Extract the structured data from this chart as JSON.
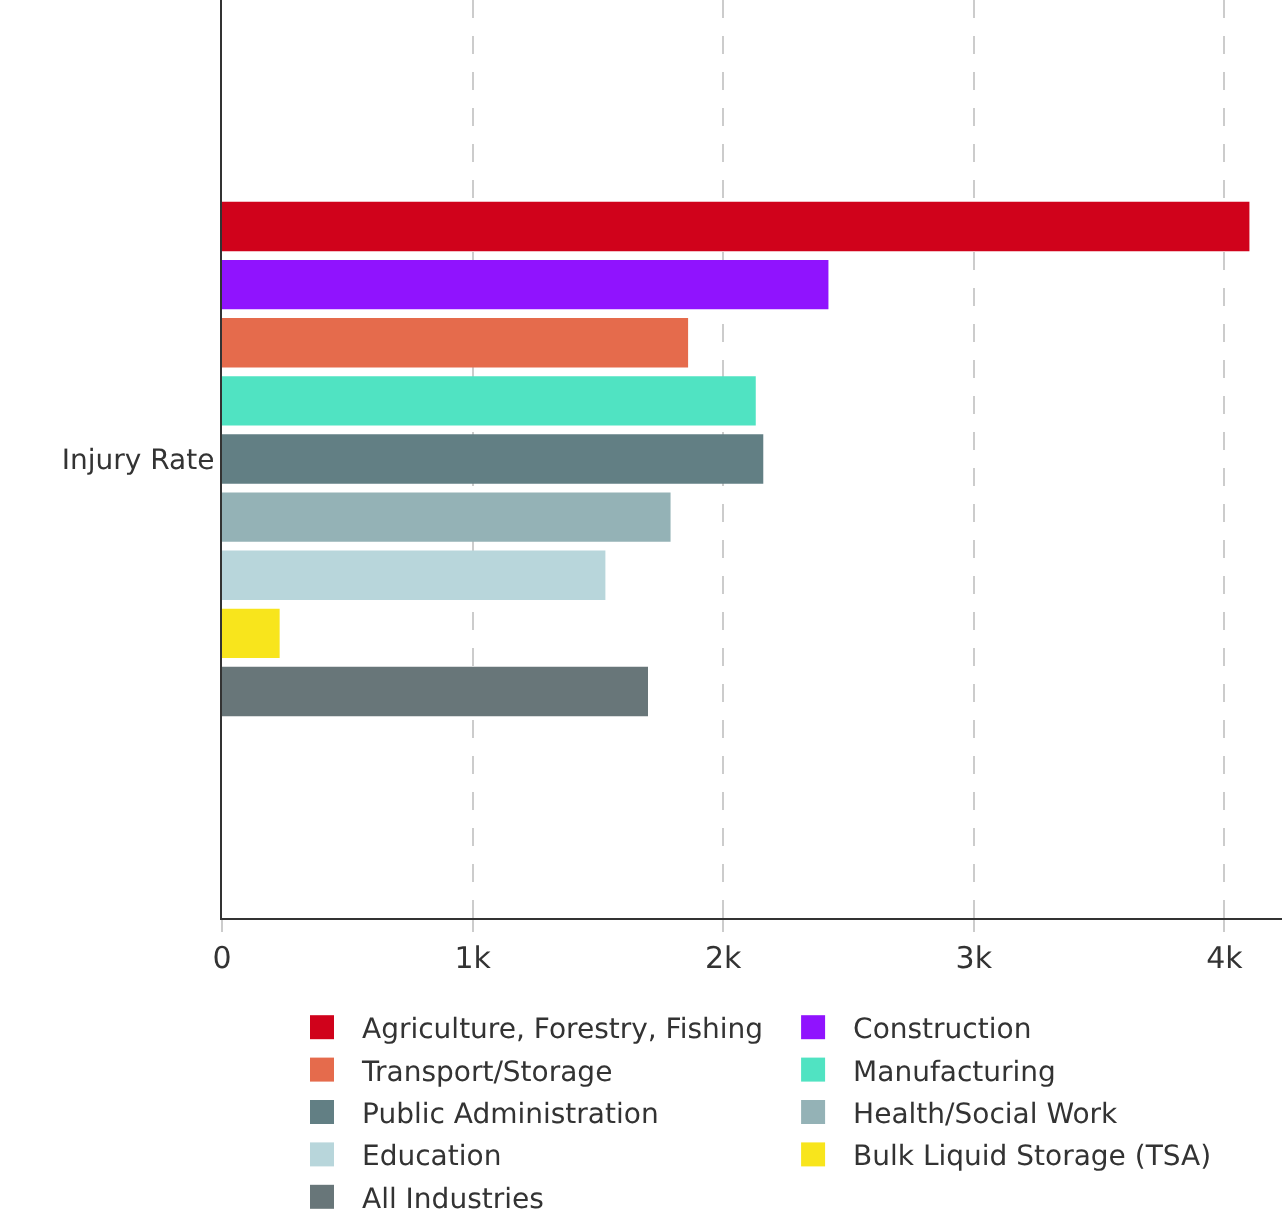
{
  "chart_data": {
    "type": "bar",
    "orientation": "horizontal",
    "categories": [
      "Injury Rate"
    ],
    "series": [
      {
        "name": "Agriculture, Forestry, Fishing",
        "color": "#d0021b",
        "values": [
          4100
        ]
      },
      {
        "name": "Construction",
        "color": "#9013fe",
        "values": [
          2420
        ]
      },
      {
        "name": "Transport/Storage",
        "color": "#e56b4c",
        "values": [
          1860
        ]
      },
      {
        "name": "Manufacturing",
        "color": "#50e3c2",
        "values": [
          2130
        ]
      },
      {
        "name": "Public Administration",
        "color": "#627f84",
        "values": [
          2160
        ]
      },
      {
        "name": "Health/Social Work",
        "color": "#94b2b6",
        "values": [
          1790
        ]
      },
      {
        "name": "Education",
        "color": "#b8d6db",
        "values": [
          1530
        ]
      },
      {
        "name": "Bulk Liquid Storage (TSA)",
        "color": "#f8e51c",
        "values": [
          230
        ]
      },
      {
        "name": "All Industries",
        "color": "#687679",
        "values": [
          1700
        ]
      }
    ],
    "xlim": [
      0,
      4230
    ],
    "xticks": [
      0,
      {
        "value": 1000,
        "label": "1k"
      },
      {
        "value": 2000,
        "label": "2k"
      },
      {
        "value": 3000,
        "label": "3k"
      },
      {
        "value": 4000,
        "label": "4k"
      }
    ],
    "grid": "x",
    "legend": "bottom"
  }
}
